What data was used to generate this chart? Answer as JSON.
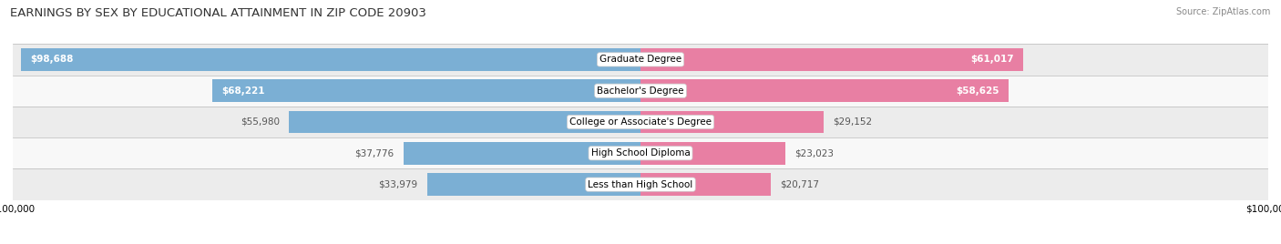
{
  "title": "EARNINGS BY SEX BY EDUCATIONAL ATTAINMENT IN ZIP CODE 20903",
  "source": "Source: ZipAtlas.com",
  "categories": [
    "Less than High School",
    "High School Diploma",
    "College or Associate's Degree",
    "Bachelor's Degree",
    "Graduate Degree"
  ],
  "male_values": [
    33979,
    37776,
    55980,
    68221,
    98688
  ],
  "female_values": [
    20717,
    23023,
    29152,
    58625,
    61017
  ],
  "male_color": "#7bafd4",
  "female_color": "#e87fa3",
  "row_bg_colors": [
    "#ececec",
    "#f8f8f8",
    "#ececec",
    "#f8f8f8",
    "#ececec"
  ],
  "xlim": 100000,
  "bar_height": 0.72,
  "figsize": [
    14.06,
    2.68
  ],
  "dpi": 100,
  "title_fontsize": 9.5,
  "tick_fontsize": 7.5,
  "label_fontsize": 7.5,
  "value_fontsize": 7.5,
  "legend_fontsize": 8,
  "source_fontsize": 7
}
